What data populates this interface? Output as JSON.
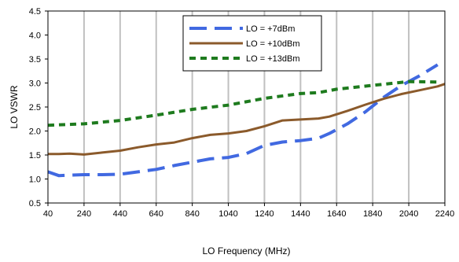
{
  "chart_data": {
    "type": "line",
    "title": "",
    "xlabel": "LO Frequency (MHz)",
    "ylabel": "LO VSWR",
    "xlim": [
      40,
      2240
    ],
    "ylim": [
      0.5,
      4.5
    ],
    "xticks": [
      40,
      240,
      440,
      640,
      840,
      1040,
      1240,
      1440,
      1640,
      1840,
      2040,
      2240
    ],
    "yticks": [
      0.5,
      1.0,
      1.5,
      2.0,
      2.5,
      3.0,
      3.5,
      4.0,
      4.5
    ],
    "xtick_labels": [
      "40",
      "240",
      "440",
      "640",
      "840",
      "1040",
      "1240",
      "1440",
      "1640",
      "1840",
      "2040",
      "2240"
    ],
    "ytick_labels": [
      "0.5",
      "1.0",
      "1.5",
      "2.0",
      "2.5",
      "3.0",
      "3.5",
      "4.0",
      "4.5"
    ],
    "grid": "vertical",
    "legend_position": "top-center",
    "series": [
      {
        "name": "LO = +7dBm",
        "color": "#4169E1",
        "style": "long-dash",
        "x": [
          40,
          100,
          160,
          240,
          340,
          440,
          540,
          640,
          740,
          840,
          940,
          1040,
          1140,
          1240,
          1340,
          1440,
          1540,
          1600,
          1700,
          1800,
          1900,
          2000,
          2100,
          2200
        ],
        "y": [
          1.15,
          1.07,
          1.08,
          1.09,
          1.09,
          1.1,
          1.15,
          1.2,
          1.28,
          1.35,
          1.42,
          1.45,
          1.53,
          1.7,
          1.77,
          1.8,
          1.85,
          1.95,
          2.15,
          2.4,
          2.7,
          2.95,
          3.15,
          3.38
        ]
      },
      {
        "name": "LO = +10dBm",
        "color": "#8B5A2B",
        "style": "solid",
        "x": [
          40,
          100,
          160,
          240,
          340,
          440,
          540,
          640,
          740,
          840,
          940,
          1040,
          1140,
          1240,
          1340,
          1440,
          1540,
          1600,
          1700,
          1800,
          1900,
          2000,
          2100,
          2200,
          2240
        ],
        "y": [
          1.52,
          1.52,
          1.53,
          1.51,
          1.55,
          1.59,
          1.66,
          1.72,
          1.76,
          1.85,
          1.92,
          1.95,
          2.0,
          2.1,
          2.22,
          2.24,
          2.26,
          2.3,
          2.42,
          2.55,
          2.67,
          2.77,
          2.85,
          2.93,
          2.98
        ]
      },
      {
        "name": "LO = +13dBm",
        "color": "#1E7B1E",
        "style": "short-dash",
        "x": [
          40,
          240,
          440,
          640,
          840,
          1040,
          1240,
          1440,
          1540,
          1640,
          1840,
          2040,
          2200
        ],
        "y": [
          2.12,
          2.15,
          2.22,
          2.33,
          2.45,
          2.54,
          2.68,
          2.78,
          2.8,
          2.87,
          2.95,
          3.03,
          3.02
        ]
      }
    ]
  }
}
